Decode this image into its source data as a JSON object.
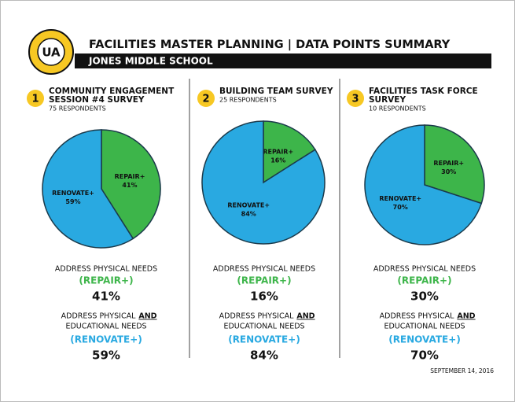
{
  "header": {
    "logo": "UA",
    "title": "FACILITIES MASTER PLANNING | DATA POINTS SUMMARY",
    "school": "JONES MIDDLE SCHOOL"
  },
  "summary": {
    "repair_text": "ADDRESS PHYSICAL NEEDS",
    "repair_label": "(REPAIR+)",
    "renovate_text_1": "ADDRESS PHYSICAL",
    "renovate_emphasis": "AND",
    "renovate_text_2": "EDUCATIONAL NEEDS",
    "renovate_label": "(RENOVATE+)"
  },
  "date": "SEPTEMBER 14, 2016",
  "chart_data": [
    {
      "type": "pie",
      "number": "1",
      "title": [
        "COMMUNITY ENGAGEMENT",
        "SESSION #4 SURVEY"
      ],
      "subtitle": "75 RESPONDENTS",
      "categories": [
        "REPAIR+",
        "RENOVATE+"
      ],
      "values": [
        41,
        59
      ],
      "value_labels": [
        "41%",
        "59%"
      ],
      "colors": [
        "#3db54a",
        "#29a9e1"
      ]
    },
    {
      "type": "pie",
      "number": "2",
      "title": [
        "BUILDING TEAM SURVEY"
      ],
      "subtitle": "25 RESPONDENTS",
      "categories": [
        "REPAIR+",
        "RENOVATE+"
      ],
      "values": [
        16,
        84
      ],
      "value_labels": [
        "16%",
        "84%"
      ],
      "colors": [
        "#3db54a",
        "#29a9e1"
      ]
    },
    {
      "type": "pie",
      "number": "3",
      "title": [
        "FACILITIES TASK FORCE",
        "SURVEY"
      ],
      "subtitle": "10 RESPONDENTS",
      "categories": [
        "REPAIR+",
        "RENOVATE+"
      ],
      "values": [
        30,
        70
      ],
      "value_labels": [
        "30%",
        "70%"
      ],
      "colors": [
        "#3db54a",
        "#29a9e1"
      ]
    }
  ]
}
